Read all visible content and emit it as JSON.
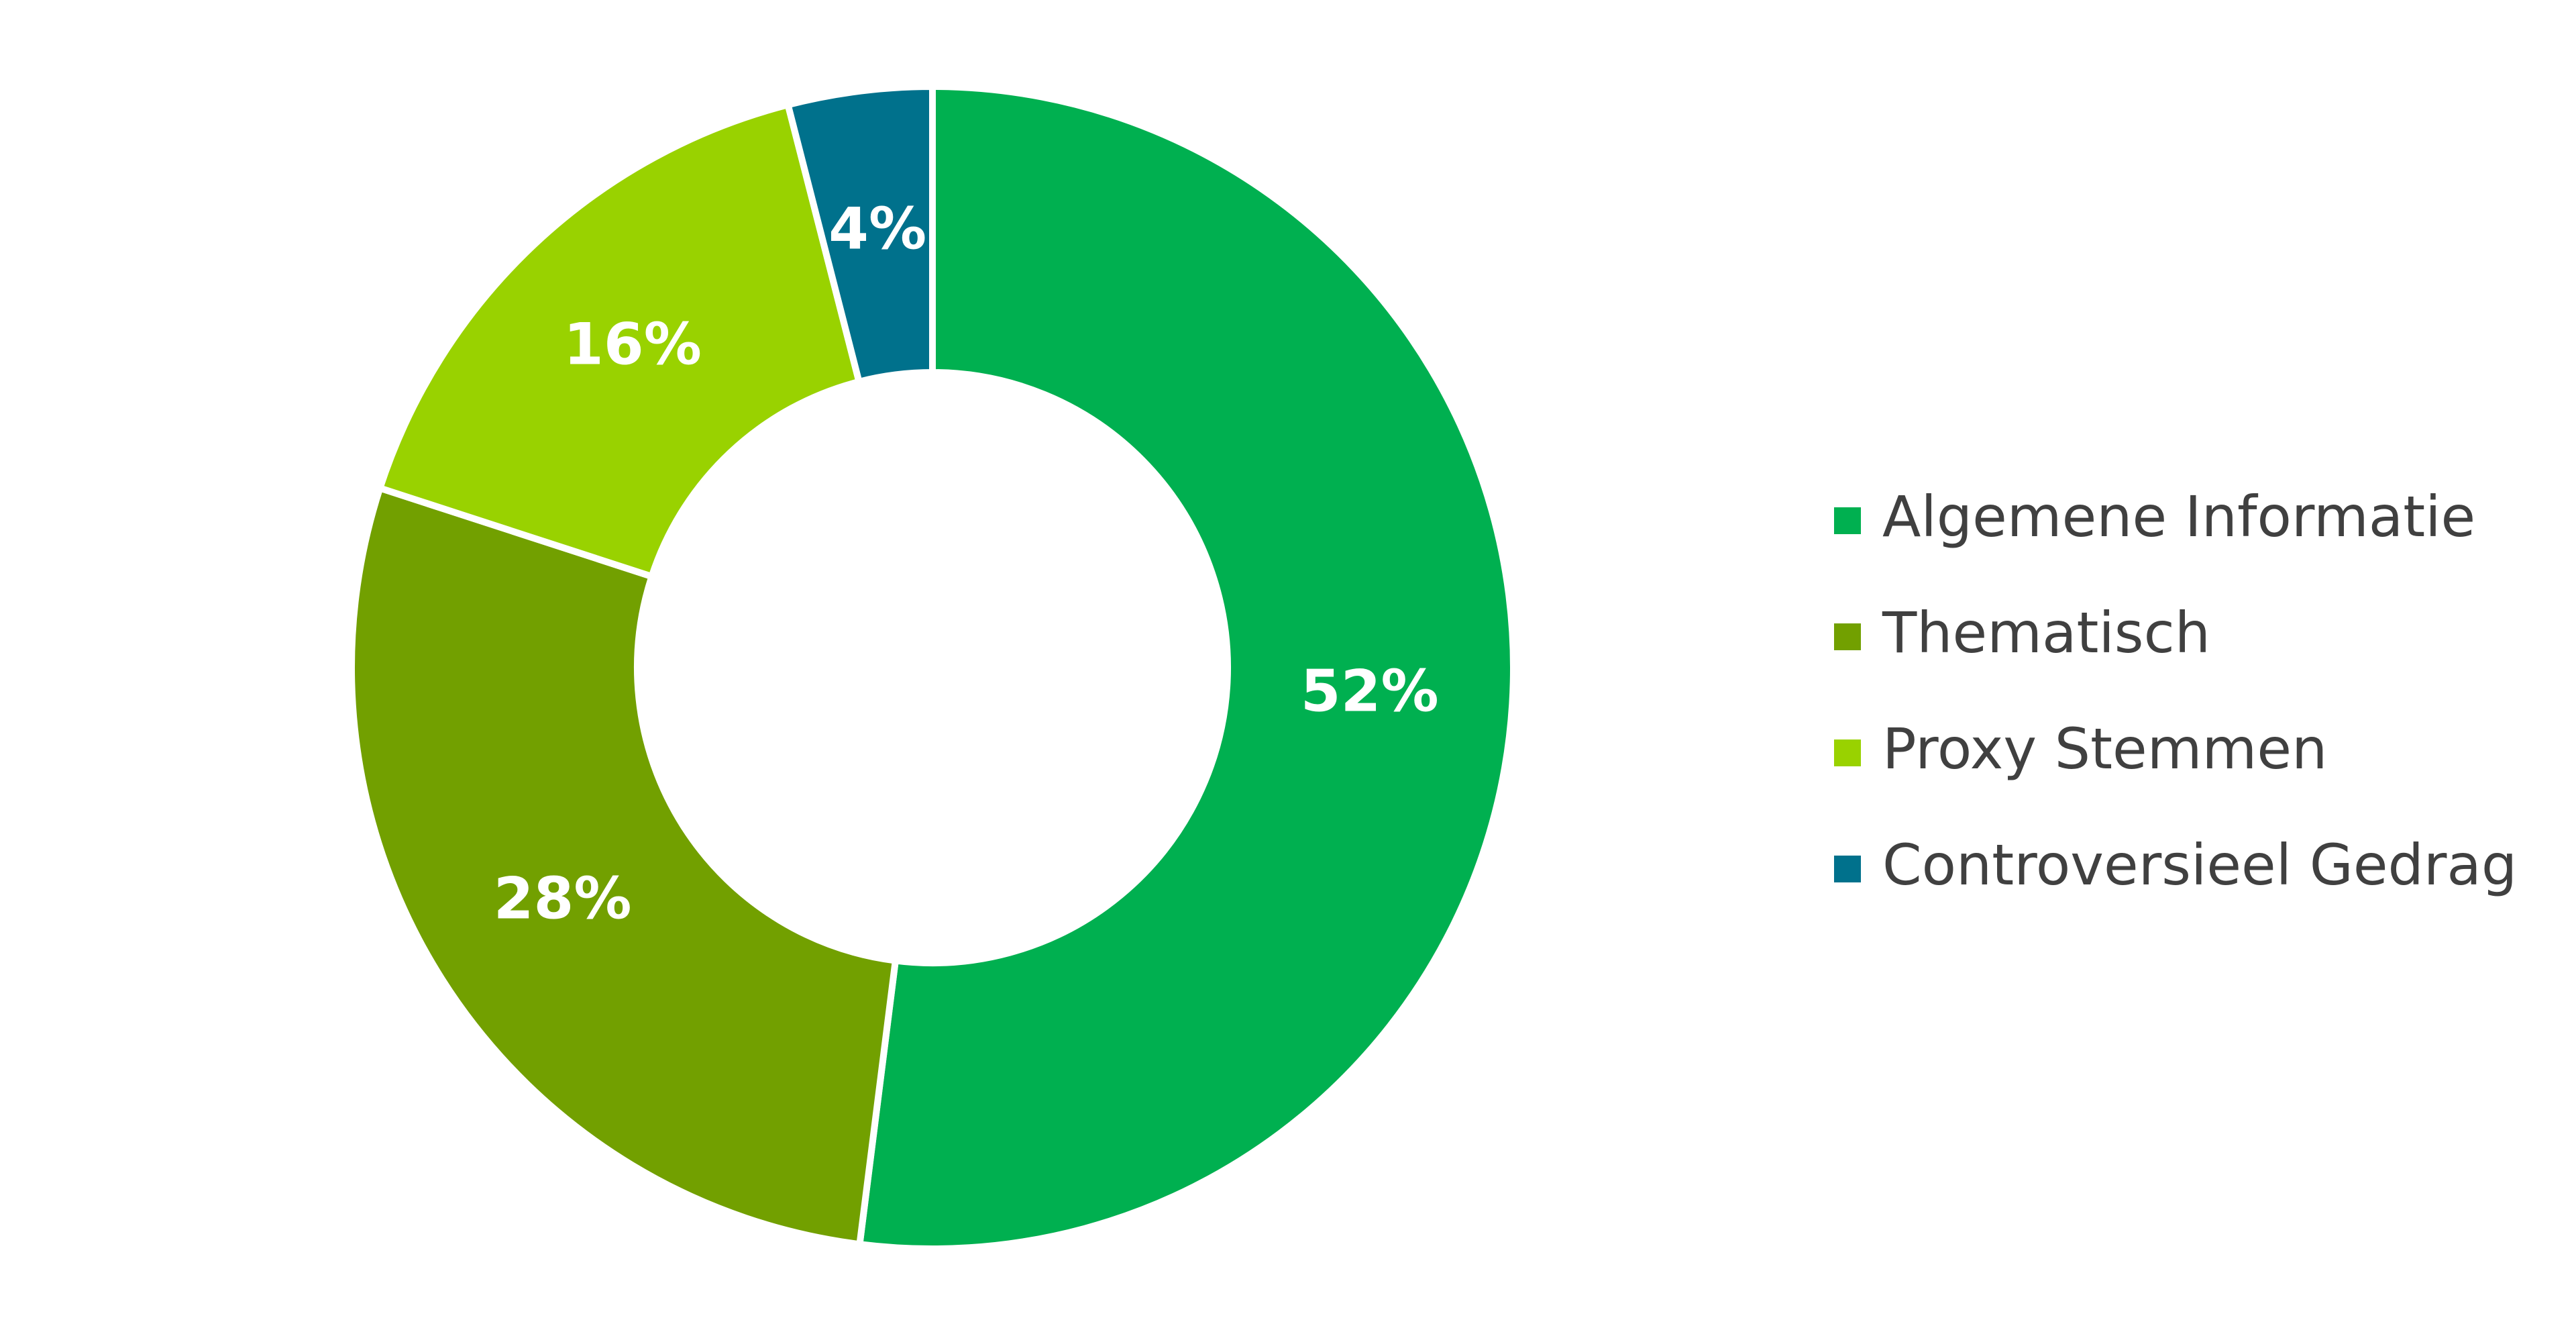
{
  "chart_data": {
    "type": "pie",
    "categories": [
      "Algemene Informatie",
      "Thematisch",
      "Proxy Stemmen",
      "Controversieel Gedrag"
    ],
    "values": [
      52,
      28,
      16,
      4
    ],
    "value_labels": [
      "52%",
      "28%",
      "16%",
      "4%"
    ],
    "colors": [
      "#00b050",
      "#72a000",
      "#99d200",
      "#00718c"
    ],
    "legend": "right"
  }
}
